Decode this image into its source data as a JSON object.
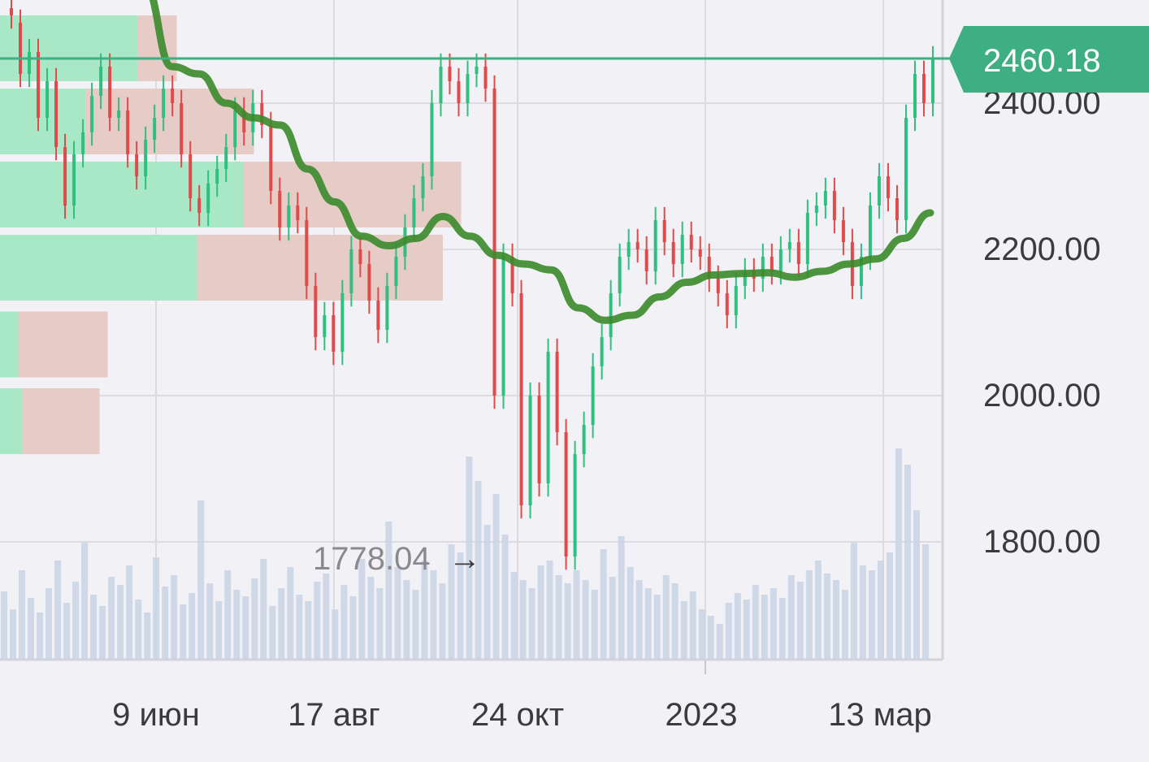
{
  "chart_data": {
    "type": "candlestick",
    "title": "",
    "xlabel": "",
    "ylabel": "",
    "ylim": [
      1620,
      2560
    ],
    "grid": true,
    "y_ticks": [
      "1800.00",
      "2000.00",
      "2200.00",
      "2400.00"
    ],
    "x_ticks": [
      "9 июн",
      "17 авг",
      "24 окт",
      "2023",
      "13 мар"
    ],
    "last_price": {
      "label": "2460.18",
      "value": 2460.18
    },
    "low_annotation": {
      "label": "1778.04",
      "arrow": "→",
      "value": 1778.04
    },
    "colors": {
      "up": "#2fbf7f",
      "down": "#e04a4a",
      "moving_average": "#3a8a2a",
      "price_badge": "#3daf82",
      "volume_profile_buy": "#a8e8c6",
      "volume_profile_sell": "#e6cbc6",
      "volume": "#c9d3e4"
    },
    "moving_average": [
      2700,
      2560,
      2450,
      2440,
      2400,
      2380,
      2370,
      2310,
      2265,
      2218,
      2205,
      2215,
      2245,
      2218,
      2192,
      2180,
      2172,
      2120,
      2103,
      2110,
      2135,
      2155,
      2165,
      2167,
      2168,
      2162,
      2170,
      2180,
      2187,
      2215,
      2250
    ],
    "candles": [
      [
        2530,
        2520
      ],
      [
        2510,
        2440
      ],
      [
        2440,
        2470
      ],
      [
        2470,
        2380
      ],
      [
        2380,
        2430
      ],
      [
        2430,
        2340
      ],
      [
        2340,
        2260
      ],
      [
        2260,
        2330
      ],
      [
        2330,
        2360
      ],
      [
        2360,
        2410
      ],
      [
        2410,
        2450
      ],
      [
        2450,
        2380
      ],
      [
        2380,
        2390
      ],
      [
        2390,
        2330
      ],
      [
        2330,
        2300
      ],
      [
        2300,
        2350
      ],
      [
        2350,
        2380
      ],
      [
        2380,
        2420
      ],
      [
        2420,
        2400
      ],
      [
        2400,
        2330
      ],
      [
        2330,
        2270
      ],
      [
        2270,
        2250
      ],
      [
        2250,
        2290
      ],
      [
        2290,
        2310
      ],
      [
        2310,
        2340
      ],
      [
        2340,
        2390
      ],
      [
        2390,
        2360
      ],
      [
        2360,
        2400
      ],
      [
        2400,
        2370
      ],
      [
        2370,
        2280
      ],
      [
        2280,
        2230
      ],
      [
        2230,
        2260
      ],
      [
        2260,
        2240
      ],
      [
        2240,
        2150
      ],
      [
        2150,
        2080
      ],
      [
        2080,
        2110
      ],
      [
        2110,
        2060
      ],
      [
        2060,
        2140
      ],
      [
        2140,
        2200
      ],
      [
        2200,
        2180
      ],
      [
        2180,
        2130
      ],
      [
        2130,
        2090
      ],
      [
        2090,
        2150
      ],
      [
        2150,
        2190
      ],
      [
        2190,
        2230
      ],
      [
        2230,
        2270
      ],
      [
        2270,
        2300
      ],
      [
        2300,
        2400
      ],
      [
        2400,
        2450
      ],
      [
        2450,
        2430
      ],
      [
        2430,
        2400
      ],
      [
        2400,
        2440
      ],
      [
        2440,
        2450
      ],
      [
        2450,
        2420
      ],
      [
        2420,
        2000
      ],
      [
        2000,
        2190
      ],
      [
        2190,
        2140
      ],
      [
        2140,
        1850
      ],
      [
        1850,
        2000
      ],
      [
        2000,
        1880
      ],
      [
        1880,
        2060
      ],
      [
        2060,
        1950
      ],
      [
        1950,
        1780
      ],
      [
        1780,
        1920
      ],
      [
        1920,
        1960
      ],
      [
        1960,
        2040
      ],
      [
        2040,
        2080
      ],
      [
        2080,
        2140
      ],
      [
        2140,
        2190
      ],
      [
        2190,
        2210
      ],
      [
        2210,
        2200
      ],
      [
        2200,
        2170
      ],
      [
        2170,
        2240
      ],
      [
        2240,
        2210
      ],
      [
        2210,
        2180
      ],
      [
        2180,
        2220
      ],
      [
        2220,
        2200
      ],
      [
        2200,
        2190
      ],
      [
        2190,
        2160
      ],
      [
        2160,
        2140
      ],
      [
        2140,
        2110
      ],
      [
        2110,
        2150
      ],
      [
        2150,
        2170
      ],
      [
        2170,
        2160
      ],
      [
        2160,
        2190
      ],
      [
        2190,
        2170
      ],
      [
        2170,
        2200
      ],
      [
        2200,
        2210
      ],
      [
        2210,
        2180
      ],
      [
        2180,
        2250
      ],
      [
        2250,
        2260
      ],
      [
        2260,
        2280
      ],
      [
        2280,
        2240
      ],
      [
        2240,
        2210
      ],
      [
        2210,
        2150
      ],
      [
        2150,
        2190
      ],
      [
        2190,
        2260
      ],
      [
        2260,
        2300
      ],
      [
        2300,
        2270
      ],
      [
        2270,
        2240
      ],
      [
        2240,
        2380
      ],
      [
        2380,
        2440
      ],
      [
        2440,
        2400
      ],
      [
        2400,
        2460
      ]
    ],
    "volume_profile": [
      {
        "price_low": 2430,
        "price_high": 2520,
        "buy": 0.68,
        "sell": 0.87
      },
      {
        "price_low": 2330,
        "price_high": 2420,
        "buy": 0.42,
        "sell": 1.25
      },
      {
        "price_low": 2230,
        "price_high": 2320,
        "buy": 1.2,
        "sell": 2.27
      },
      {
        "price_low": 2130,
        "price_high": 2220,
        "buy": 0.97,
        "sell": 2.18
      },
      {
        "price_low": 2025,
        "price_high": 2115,
        "buy": 0.09,
        "sell": 0.53
      },
      {
        "price_low": 1920,
        "price_high": 2010,
        "buy": 0.11,
        "sell": 0.49
      }
    ],
    "volumes": [
      0.42,
      0.31,
      0.55,
      0.38,
      0.29,
      0.44,
      0.61,
      0.35,
      0.48,
      0.72,
      0.4,
      0.33,
      0.51,
      0.46,
      0.58,
      0.37,
      0.29,
      0.63,
      0.45,
      0.52,
      0.34,
      0.41,
      0.98,
      0.47,
      0.36,
      0.55,
      0.43,
      0.39,
      0.5,
      0.62,
      0.33,
      0.44,
      0.57,
      0.4,
      0.36,
      0.48,
      0.53,
      0.31,
      0.46,
      0.39,
      0.62,
      0.51,
      0.44,
      0.85,
      0.57,
      0.49,
      0.43,
      0.61,
      0.55,
      0.47,
      0.71,
      0.66,
      1.25,
      1.1,
      0.83,
      1.02,
      0.77,
      0.54,
      0.49,
      0.44,
      0.58,
      0.61,
      0.52,
      0.47,
      0.55,
      0.49,
      0.43,
      0.68,
      0.51,
      0.76,
      0.57,
      0.49,
      0.44,
      0.4,
      0.52,
      0.47,
      0.36,
      0.42,
      0.31,
      0.27,
      0.22,
      0.35,
      0.41,
      0.37,
      0.46,
      0.4,
      0.44,
      0.38,
      0.52,
      0.48,
      0.55,
      0.61,
      0.53,
      0.49,
      0.43,
      0.72,
      0.58,
      0.55,
      0.61,
      0.66,
      1.3,
      1.2,
      0.92,
      0.71
    ]
  }
}
